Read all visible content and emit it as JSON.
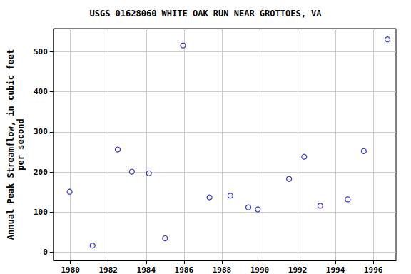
{
  "chart_data": {
    "type": "scatter",
    "title": "USGS 01628060 WHITE OAK RUN NEAR GROTTOES, VA",
    "y_label": "Annual Peak Streamflow, in cubic feet\nper second",
    "x": [
      1979.96,
      1981.17,
      1982.5,
      1983.25,
      1984.15,
      1985.0,
      1985.95,
      1987.35,
      1988.45,
      1989.4,
      1989.9,
      1991.55,
      1992.35,
      1993.2,
      1994.65,
      1995.5,
      1996.75
    ],
    "values": [
      151,
      17,
      256,
      201,
      197,
      35,
      515,
      137,
      141,
      112,
      107,
      183,
      238,
      116,
      132,
      252,
      530
    ],
    "color": "#0000cc",
    "marker": "hollow circle",
    "xlim": [
      1979.1,
      1997.2
    ],
    "xticks": [
      1980,
      1982,
      1984,
      1986,
      1988,
      1990,
      1992,
      1994,
      1996
    ],
    "ylim": [
      -20,
      557
    ],
    "yticks": [
      0,
      100,
      200,
      300,
      400,
      500
    ],
    "grid": true
  }
}
